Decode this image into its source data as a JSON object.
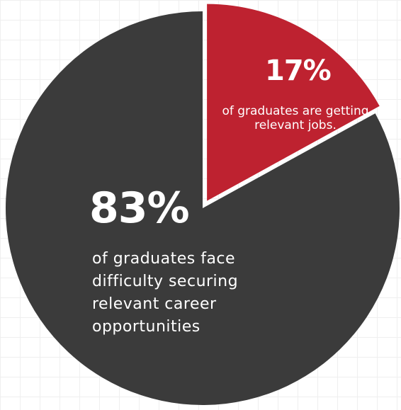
{
  "chart_data": {
    "type": "pie",
    "slices": [
      {
        "value": 17,
        "label": "17%",
        "description": "of graduates are getting relevant jobs.",
        "color": "#be2230",
        "exploded": true
      },
      {
        "value": 83,
        "label": "83%",
        "description": "of graduates face difficulty securing relevant career opportunities",
        "color": "#3b3b3b",
        "exploded": false
      }
    ],
    "title": "",
    "legend": "none",
    "grid": false,
    "background_grid": true
  }
}
